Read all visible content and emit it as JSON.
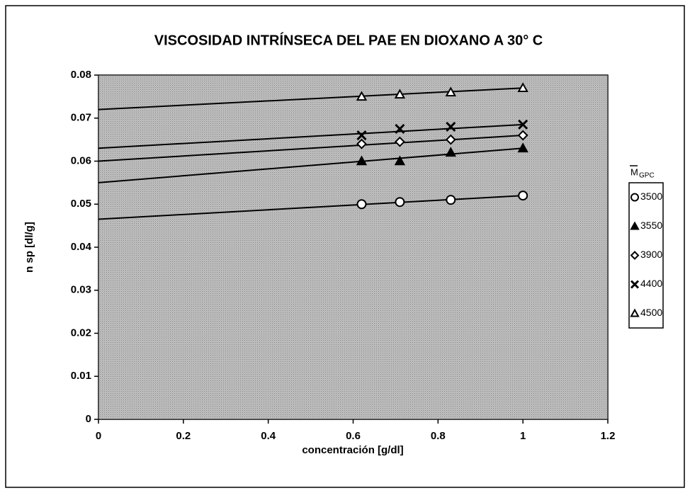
{
  "chart_data": {
    "type": "scatter",
    "title": "VISCOSIDAD INTRÍNSECA DEL PAE EN DIOXANO A 30° C",
    "xlabel": "concentración  [g/dl]",
    "ylabel": "n sp  [dl/g]",
    "legend_title": {
      "main": "M",
      "sub": "GPC"
    },
    "legend": "right",
    "x": [
      0.62,
      0.71,
      0.83,
      1.0
    ],
    "trend_x": [
      0,
      1
    ],
    "series": [
      {
        "name": "3500",
        "marker": "circle-open",
        "color": "#000000",
        "values": [
          0.05,
          0.0505,
          0.051,
          0.052
        ],
        "trend": [
          0.0465,
          0.052
        ]
      },
      {
        "name": "3550",
        "marker": "triangle-filled",
        "color": "#000000",
        "values": [
          0.06,
          0.06,
          0.062,
          0.063
        ],
        "trend": [
          0.055,
          0.063
        ]
      },
      {
        "name": "3900",
        "marker": "diamond-open",
        "color": "#000000",
        "values": [
          0.064,
          0.0645,
          0.065,
          0.066
        ],
        "trend": [
          0.06,
          0.066
        ]
      },
      {
        "name": "4400",
        "marker": "x",
        "color": "#000000",
        "values": [
          0.066,
          0.0675,
          0.068,
          0.0685
        ],
        "trend": [
          0.063,
          0.0685
        ]
      },
      {
        "name": "4500",
        "marker": "triangle-open",
        "color": "#000000",
        "values": [
          0.075,
          0.0755,
          0.076,
          0.077
        ],
        "trend": [
          0.072,
          0.077
        ]
      }
    ],
    "xlim": [
      0,
      1.2
    ],
    "xticks": [
      0,
      0.2,
      0.4,
      0.6,
      0.8,
      1,
      1.2
    ],
    "ylim": [
      0,
      0.08
    ],
    "yticks": [
      0,
      0.01,
      0.02,
      0.03,
      0.04,
      0.05,
      0.06,
      0.07,
      0.08
    ],
    "plot_background": "#b4b4b4"
  }
}
